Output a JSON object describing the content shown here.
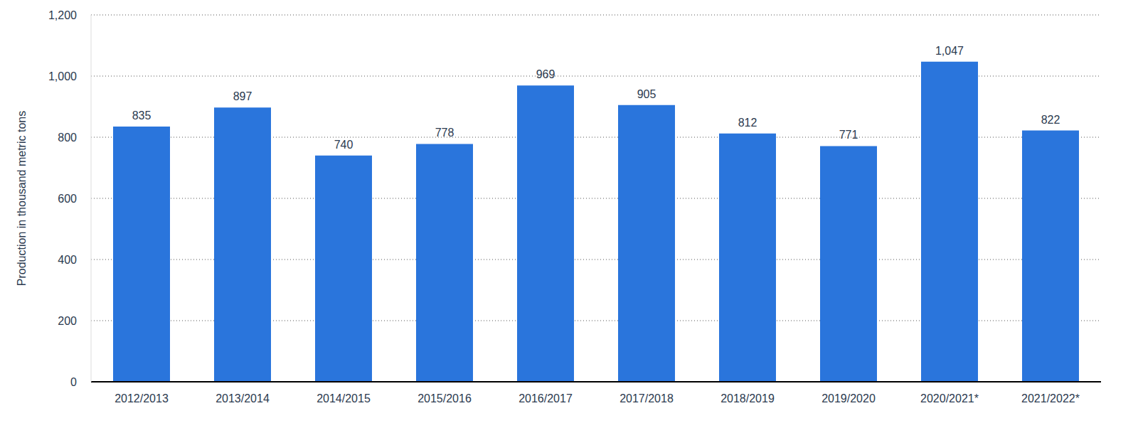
{
  "chart_data": {
    "type": "bar",
    "y_label": "Production in thousand metric tons",
    "categories": [
      "2012/2013",
      "2013/2014",
      "2014/2015",
      "2015/2016",
      "2016/2017",
      "2017/2018",
      "2018/2019",
      "2019/2020",
      "2020/2021*",
      "2021/2022*"
    ],
    "values": [
      835,
      897,
      740,
      778,
      969,
      905,
      812,
      771,
      1047,
      822
    ],
    "value_labels": [
      "835",
      "897",
      "740",
      "778",
      "969",
      "905",
      "812",
      "771",
      "1,047",
      "822"
    ],
    "color": "#2a75dc",
    "ylim": [
      0,
      1200
    ],
    "yticks": [
      0,
      200,
      400,
      600,
      800,
      {
        "value": 1000,
        "label": "1,000"
      },
      {
        "value": 1200,
        "label": "1,200"
      }
    ],
    "grid": true,
    "data_labels": true
  }
}
